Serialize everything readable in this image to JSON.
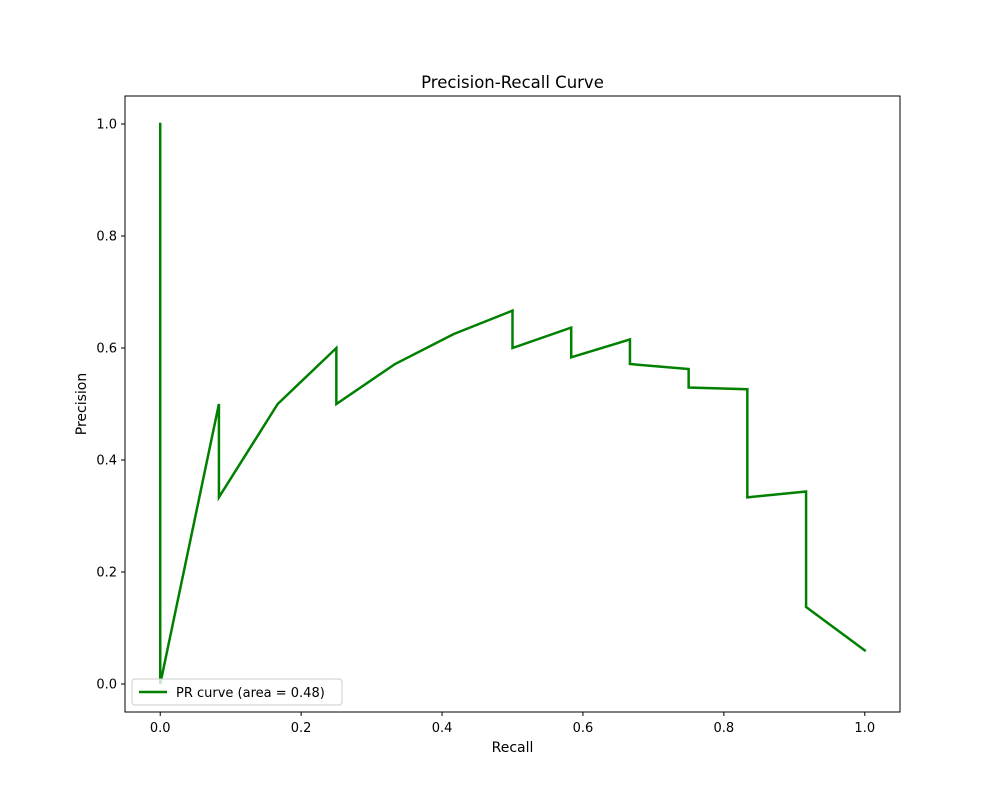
{
  "chart_data": {
    "type": "line",
    "title": "Precision-Recall Curve",
    "xlabel": "Recall",
    "ylabel": "Precision",
    "xlim": [
      -0.05,
      1.05
    ],
    "ylim": [
      -0.05,
      1.05
    ],
    "xticks": [
      0.0,
      0.2,
      0.4,
      0.6,
      0.8,
      1.0
    ],
    "xtick_labels": [
      "0.0",
      "0.2",
      "0.4",
      "0.6",
      "0.8",
      "1.0"
    ],
    "yticks": [
      0.0,
      0.2,
      0.4,
      0.6,
      0.8,
      1.0
    ],
    "ytick_labels": [
      "0.0",
      "0.2",
      "0.4",
      "0.6",
      "0.8",
      "1.0"
    ],
    "grid": false,
    "legend": {
      "position": "lower-left"
    },
    "series": [
      {
        "name": "PR curve (area = 0.48)",
        "color": "#008000",
        "x": [
          0.0,
          0.0,
          0.0833,
          0.0833,
          0.1667,
          0.25,
          0.25,
          0.3333,
          0.4167,
          0.5,
          0.5,
          0.5833,
          0.5833,
          0.6667,
          0.6667,
          0.75,
          0.75,
          0.8333,
          0.8333,
          0.9167,
          0.9167,
          1.0
        ],
        "y": [
          1.0,
          0.0,
          0.5,
          0.3333,
          0.5,
          0.6,
          0.5,
          0.5714,
          0.625,
          0.6667,
          0.6,
          0.6364,
          0.5833,
          0.6154,
          0.5714,
          0.5625,
          0.5294,
          0.5263,
          0.3333,
          0.3438,
          0.1375,
          0.06
        ]
      }
    ]
  }
}
